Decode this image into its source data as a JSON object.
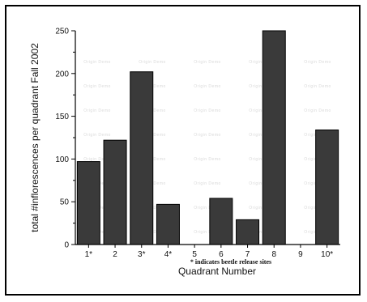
{
  "chart_data": {
    "type": "bar",
    "categories": [
      "1*",
      "2",
      "3*",
      "4*",
      "5",
      "6",
      "7",
      "8",
      "9",
      "10*"
    ],
    "values": [
      97,
      122,
      202,
      47,
      0,
      54,
      29,
      250,
      0,
      134
    ],
    "xlabel": "Quadrant Number",
    "ylabel": "total #inflorescences per quadrant Fall 2002",
    "ylim": [
      0,
      250
    ],
    "yticks": [
      0,
      50,
      100,
      150,
      200,
      250
    ],
    "annotation": "* indicates beetle release sites",
    "watermark": "Origin Demo",
    "bar_color": "#3a3a3a",
    "grid": false,
    "legend": "none"
  }
}
